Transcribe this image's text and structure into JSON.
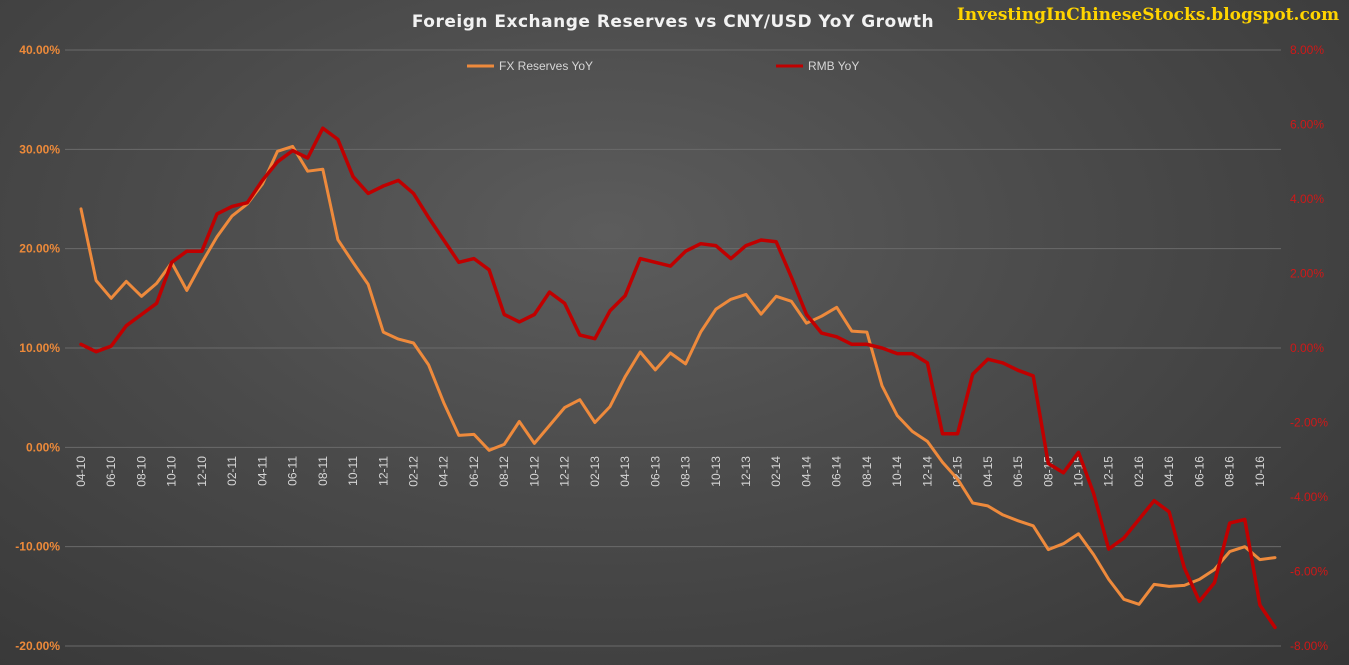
{
  "watermark": "InvestingInChineseStocks.blogspot.com",
  "colors": {
    "fx": "#ee8a3c",
    "rmb": "#c00000"
  },
  "chart_data": {
    "type": "line",
    "title": "Foreign Exchange Reserves vs CNY/USD YoY Growth",
    "legend_position": "top",
    "grid": true,
    "x": [
      "04-10",
      "05-10",
      "06-10",
      "07-10",
      "08-10",
      "09-10",
      "10-10",
      "11-10",
      "12-10",
      "01-11",
      "02-11",
      "03-11",
      "04-11",
      "05-11",
      "06-11",
      "07-11",
      "08-11",
      "09-11",
      "10-11",
      "11-11",
      "12-11",
      "01-12",
      "02-12",
      "03-12",
      "04-12",
      "05-12",
      "06-12",
      "07-12",
      "08-12",
      "09-12",
      "10-12",
      "11-12",
      "12-12",
      "01-13",
      "02-13",
      "03-13",
      "04-13",
      "05-13",
      "06-13",
      "07-13",
      "08-13",
      "09-13",
      "10-13",
      "11-13",
      "12-13",
      "01-14",
      "02-14",
      "03-14",
      "04-14",
      "05-14",
      "06-14",
      "07-14",
      "08-14",
      "09-14",
      "10-14",
      "11-14",
      "12-14",
      "01-15",
      "02-15",
      "03-15",
      "04-15",
      "05-15",
      "06-15",
      "07-15",
      "08-15",
      "09-15",
      "10-15",
      "11-15",
      "12-15",
      "01-16",
      "02-16",
      "03-16",
      "04-16",
      "05-16",
      "06-16",
      "07-16",
      "08-16",
      "09-16",
      "10-16",
      "11-16"
    ],
    "xtick_labels": [
      "04-10",
      "06-10",
      "08-10",
      "10-10",
      "12-10",
      "02-11",
      "04-11",
      "06-11",
      "08-11",
      "10-11",
      "12-11",
      "02-12",
      "04-12",
      "06-12",
      "08-12",
      "10-12",
      "12-12",
      "02-13",
      "04-13",
      "06-13",
      "08-13",
      "10-13",
      "12-13",
      "02-14",
      "04-14",
      "06-14",
      "08-14",
      "10-14",
      "12-14",
      "02-15",
      "04-15",
      "06-15",
      "08-15",
      "10-15",
      "12-15",
      "02-16",
      "04-16",
      "06-16",
      "08-16",
      "10-16"
    ],
    "y_left": {
      "min": -20,
      "max": 40,
      "step": 10,
      "ticks": [
        "-20.00%",
        "-10.00%",
        "0.00%",
        "10.00%",
        "20.00%",
        "30.00%",
        "40.00%"
      ]
    },
    "y_right": {
      "min": -8,
      "max": 8,
      "step": 2,
      "ticks": [
        "-8.00%",
        "-6.00%",
        "-4.00%",
        "-2.00%",
        "0.00%",
        "2.00%",
        "4.00%",
        "6.00%",
        "8.00%"
      ]
    },
    "series": [
      {
        "name": "FX Reserves YoY",
        "axis": "left",
        "values": [
          24.0,
          16.8,
          15.0,
          16.7,
          15.2,
          16.5,
          18.6,
          15.8,
          18.6,
          21.2,
          23.3,
          24.5,
          26.5,
          29.8,
          30.3,
          27.8,
          28.0,
          20.9,
          18.6,
          16.4,
          11.6,
          10.9,
          10.5,
          8.3,
          4.5,
          1.2,
          1.3,
          -0.3,
          0.3,
          2.6,
          0.4,
          2.2,
          4.0,
          4.8,
          2.5,
          4.1,
          7.1,
          9.6,
          7.8,
          9.5,
          8.4,
          11.6,
          13.9,
          14.9,
          15.4,
          13.4,
          15.2,
          14.7,
          12.5,
          13.2,
          14.1,
          11.7,
          11.6,
          6.2,
          3.2,
          1.6,
          0.6,
          -1.5,
          -3.2,
          -5.6,
          -5.9,
          -6.8,
          -7.4,
          -7.9,
          -10.3,
          -9.7,
          -8.7,
          -10.8,
          -13.3,
          -15.3,
          -15.8,
          -13.8,
          -14.0,
          -13.9,
          -13.3,
          -12.3,
          -10.5,
          -10.0,
          -11.3,
          -11.1
        ]
      },
      {
        "name": "RMB YoY",
        "axis": "right",
        "values": [
          0.1,
          -0.1,
          0.05,
          0.6,
          0.9,
          1.2,
          2.3,
          2.6,
          2.6,
          3.6,
          3.8,
          3.9,
          4.5,
          5.0,
          5.3,
          5.1,
          5.9,
          5.6,
          4.6,
          4.15,
          4.35,
          4.5,
          4.15,
          3.5,
          2.9,
          2.3,
          2.4,
          2.1,
          0.9,
          0.7,
          0.9,
          1.5,
          1.2,
          0.35,
          0.25,
          1.0,
          1.4,
          2.4,
          2.3,
          2.2,
          2.6,
          2.8,
          2.75,
          2.4,
          2.75,
          2.9,
          2.85,
          1.9,
          0.9,
          0.4,
          0.3,
          0.1,
          0.1,
          0.0,
          -0.15,
          -0.15,
          -0.4,
          -2.3,
          -2.3,
          -0.7,
          -0.3,
          -0.4,
          -0.6,
          -0.75,
          -3.1,
          -3.35,
          -2.8,
          -3.9,
          -5.4,
          -5.1,
          -4.6,
          -4.1,
          -4.4,
          -5.9,
          -6.8,
          -6.3,
          -4.7,
          -4.6,
          -6.9,
          -7.5
        ]
      }
    ]
  }
}
